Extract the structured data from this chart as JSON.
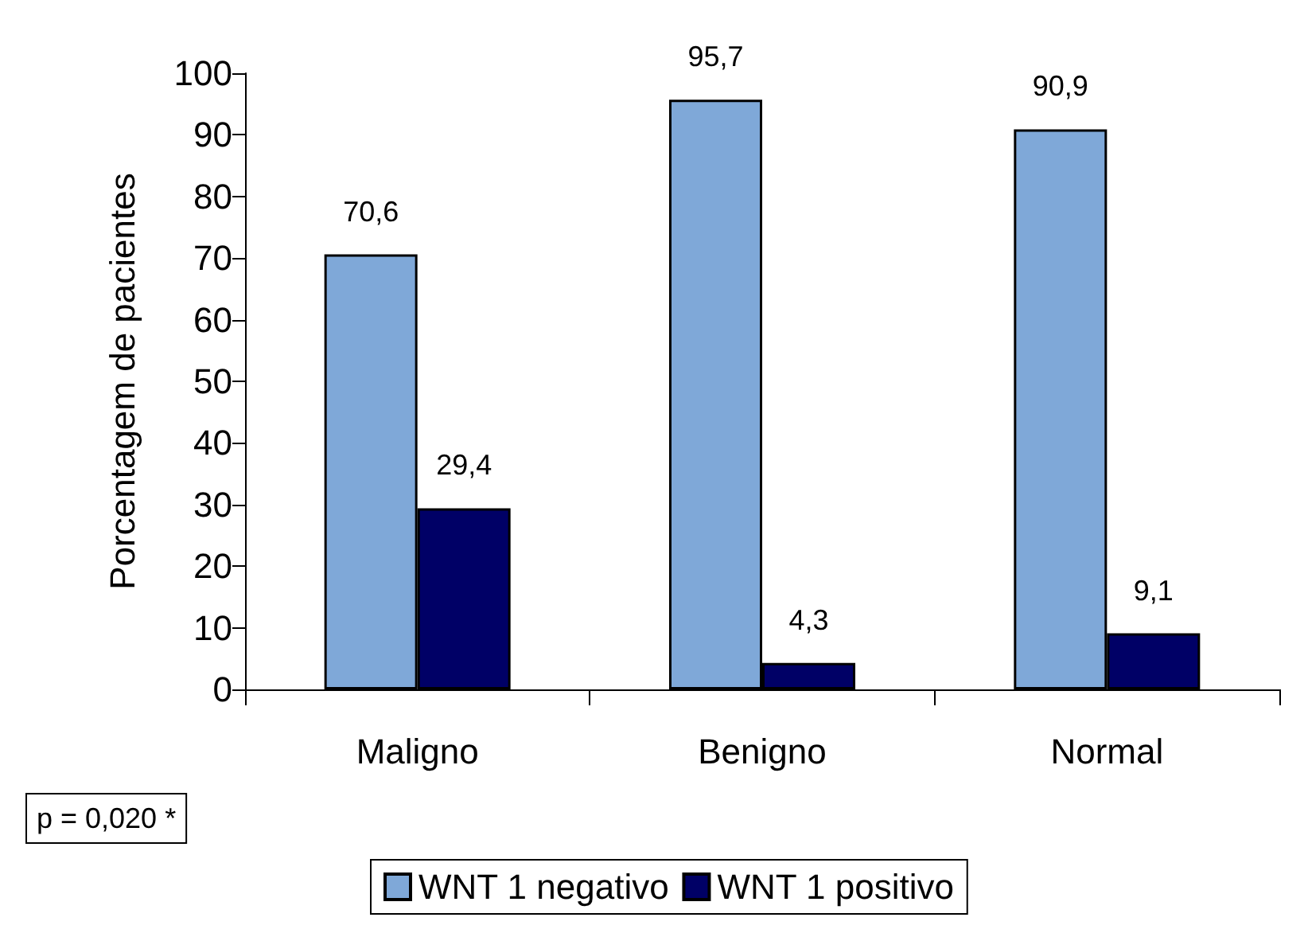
{
  "chart_data": {
    "type": "bar",
    "ylabel": "Porcentagem de pacientes",
    "categories": [
      "Maligno",
      "Benigno",
      "Normal"
    ],
    "series": [
      {
        "name": "WNT 1 negativo",
        "color": "#7fa8d8",
        "values": [
          70.6,
          95.7,
          90.9
        ],
        "value_labels": [
          "70,6",
          "95,7",
          "90,9"
        ]
      },
      {
        "name": "WNT 1 positivo",
        "color": "#000066",
        "values": [
          29.4,
          4.3,
          9.1
        ],
        "value_labels": [
          "29,4",
          "4,3",
          "9,1"
        ]
      }
    ],
    "ylim": [
      0,
      100
    ],
    "yticks": [
      0,
      10,
      20,
      30,
      40,
      50,
      60,
      70,
      80,
      90,
      100
    ],
    "grid": false,
    "legend": "bottom",
    "annotations": [
      "p = 0,020 *"
    ]
  }
}
